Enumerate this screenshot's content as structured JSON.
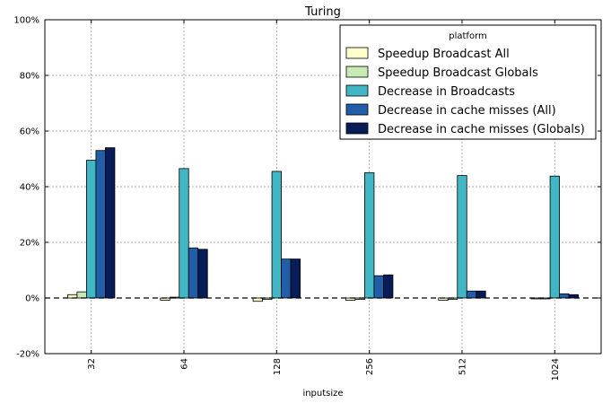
{
  "chart_data": {
    "type": "bar",
    "title": "Turing",
    "xlabel": "inputsize",
    "ylabel": "",
    "categories": [
      "32",
      "64",
      "128",
      "256",
      "512",
      "1024"
    ],
    "yticks": [
      "-20%",
      "0%",
      "20%",
      "40%",
      "60%",
      "80%",
      "100%"
    ],
    "ylim": [
      -20,
      100
    ],
    "y_unit": "percent",
    "grid": true,
    "zero_line": "dashed",
    "legend": {
      "title": "platform",
      "placement": "top-right"
    },
    "series": [
      {
        "name": "Speedup Broadcast All",
        "color": "#ffffcc",
        "values": [
          1.2,
          -0.8,
          -1.2,
          -0.8,
          -0.8,
          -0.3
        ]
      },
      {
        "name": "Speedup Broadcast Globals",
        "color": "#c7e9b4",
        "values": [
          2.2,
          0.3,
          -0.5,
          -0.5,
          -0.5,
          -0.3
        ]
      },
      {
        "name": "Decrease in Broadcasts",
        "color": "#41b6c4",
        "values": [
          49.5,
          46.5,
          45.5,
          45,
          44,
          43.8
        ]
      },
      {
        "name": "Decrease in cache misses (All)",
        "color": "#225ea8",
        "values": [
          53,
          18,
          14,
          8,
          2.5,
          1.5
        ]
      },
      {
        "name": "Decrease in cache misses (Globals)",
        "color": "#081d58",
        "values": [
          54,
          17.5,
          14,
          8.3,
          2.5,
          1.2
        ]
      }
    ]
  }
}
